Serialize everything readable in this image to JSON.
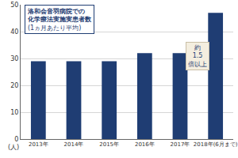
{
  "chart_data": {
    "type": "bar",
    "title": "洛和会音羽病院での\n化学療法実施実患者数",
    "subtitle": "(1ヵ月あたり平均)",
    "ylabel": "(人)",
    "categories": [
      "2013年",
      "2014年",
      "2015年",
      "2016年",
      "2017年",
      "2018年(6月まで)"
    ],
    "values": [
      29,
      29,
      29,
      32,
      32,
      47
    ],
    "color": "#1f3d73",
    "ylim": [
      0,
      50
    ],
    "yticks": [
      0,
      10,
      20,
      30,
      40,
      50
    ],
    "grid": true,
    "annotations": [
      "約\n1.5\n倍以上"
    ]
  }
}
